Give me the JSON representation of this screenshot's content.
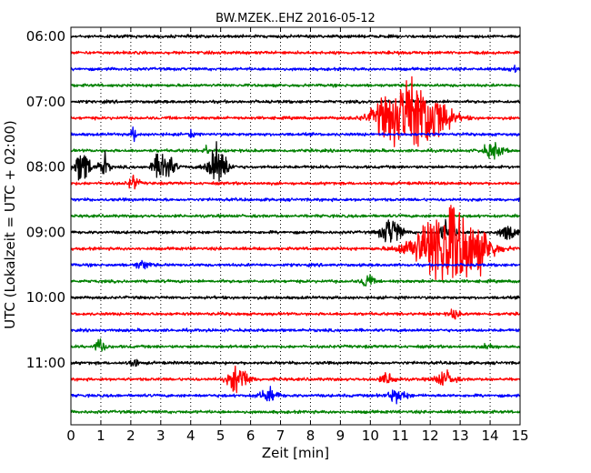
{
  "chart_data": {
    "type": "line",
    "title": "BW.MZEK..EHZ 2016-05-12",
    "xlabel": "Zeit  [min]",
    "ylabel": "UTC (Lokalzeit = UTC + 02:00)",
    "xlim": [
      0,
      15
    ],
    "xticks": [
      0,
      1,
      2,
      3,
      4,
      5,
      6,
      7,
      8,
      9,
      10,
      11,
      12,
      13,
      14,
      15
    ],
    "ytick_labels": [
      "06:00",
      "07:00",
      "08:00",
      "09:00",
      "10:00",
      "11:00"
    ],
    "ytick_traces": [
      0,
      4,
      8,
      12,
      16,
      20
    ],
    "grid": "x-dotted",
    "trace_interval_min": 15,
    "start_utc": "06:00",
    "color_cycle": [
      "#000000",
      "#ff0000",
      "#0000ff",
      "#008000"
    ],
    "series": [
      {
        "start": "06:00",
        "events": []
      },
      {
        "start": "06:15",
        "events": [
          [
            11.0,
            0.4,
            0.1
          ]
        ]
      },
      {
        "start": "06:30",
        "events": [
          [
            14.8,
            0.6,
            0.2
          ]
        ]
      },
      {
        "start": "06:45",
        "events": []
      },
      {
        "start": "07:00",
        "events": []
      },
      {
        "start": "07:15",
        "events": [
          [
            10.3,
            1.5,
            0.3
          ],
          [
            11.4,
            8.0,
            1.2
          ],
          [
            12.3,
            1.5,
            0.4
          ]
        ]
      },
      {
        "start": "07:30",
        "events": [
          [
            2.1,
            1.5,
            0.1
          ],
          [
            4.0,
            1.0,
            0.1
          ]
        ]
      },
      {
        "start": "07:45",
        "events": [
          [
            4.5,
            1.0,
            0.1
          ],
          [
            14.1,
            1.5,
            0.4
          ]
        ]
      },
      {
        "start": "08:00",
        "events": [
          [
            0.4,
            3.5,
            0.3
          ],
          [
            1.1,
            2.5,
            0.2
          ],
          [
            3.1,
            3.5,
            0.4
          ],
          [
            4.9,
            4.5,
            0.4
          ]
        ]
      },
      {
        "start": "08:15",
        "events": [
          [
            2.1,
            1.5,
            0.2
          ]
        ]
      },
      {
        "start": "08:30",
        "events": []
      },
      {
        "start": "08:45",
        "events": []
      },
      {
        "start": "09:00",
        "events": [
          [
            10.7,
            3.0,
            0.4
          ],
          [
            12.6,
            2.5,
            0.3
          ],
          [
            14.6,
            2.0,
            0.3
          ]
        ]
      },
      {
        "start": "09:15",
        "events": [
          [
            12.6,
            9.0,
            1.3
          ],
          [
            13.8,
            1.5,
            0.4
          ]
        ]
      },
      {
        "start": "09:30",
        "events": [
          [
            2.4,
            0.8,
            0.3
          ]
        ]
      },
      {
        "start": "09:45",
        "events": [
          [
            9.9,
            1.8,
            0.2
          ]
        ]
      },
      {
        "start": "10:00",
        "events": []
      },
      {
        "start": "10:15",
        "events": [
          [
            12.8,
            1.0,
            0.2
          ]
        ]
      },
      {
        "start": "10:30",
        "events": []
      },
      {
        "start": "10:45",
        "events": [
          [
            1.0,
            1.8,
            0.2
          ],
          [
            14.0,
            0.8,
            0.2
          ]
        ]
      },
      {
        "start": "11:00",
        "events": [
          [
            2.1,
            0.8,
            0.2
          ]
        ]
      },
      {
        "start": "11:15",
        "events": [
          [
            5.6,
            3.0,
            0.4
          ],
          [
            10.6,
            1.2,
            0.3
          ],
          [
            12.5,
            1.5,
            0.4
          ]
        ]
      },
      {
        "start": "11:30",
        "events": [
          [
            6.6,
            1.2,
            0.4
          ],
          [
            10.9,
            1.2,
            0.4
          ]
        ]
      },
      {
        "start": "11:45",
        "events": []
      }
    ]
  }
}
